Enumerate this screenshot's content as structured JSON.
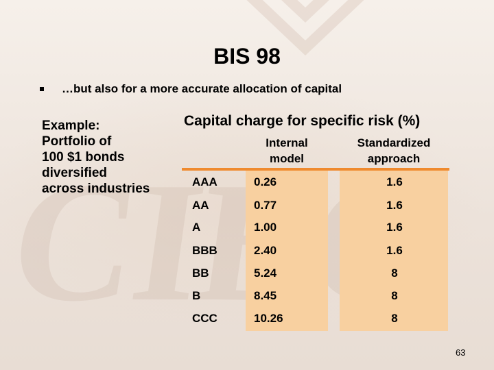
{
  "slide": {
    "title": "BIS 98",
    "bullet": "…but also for a more accurate allocation of capital",
    "example_lines": [
      "Example:",
      "Portfolio of",
      "100 $1 bonds",
      "diversified",
      "across industries"
    ],
    "table_caption": "Capital charge for specific risk (%)",
    "col_internal": [
      "Internal",
      "model"
    ],
    "col_standardized": [
      "Standardized",
      "approach"
    ],
    "rows": [
      {
        "rating": "AAA",
        "internal": "0.26",
        "standardized": "1.6"
      },
      {
        "rating": "AA",
        "internal": "0.77",
        "standardized": "1.6"
      },
      {
        "rating": "A",
        "internal": "1.00",
        "standardized": "1.6"
      },
      {
        "rating": "BBB",
        "internal": "2.40",
        "standardized": "1.6"
      },
      {
        "rating": "BB",
        "internal": "5.24",
        "standardized": "8"
      },
      {
        "rating": "B",
        "internal": "8.45",
        "standardized": "8"
      },
      {
        "rating": "CCC",
        "internal": "10.26",
        "standardized": "8"
      }
    ],
    "page_number": "63",
    "watermark_text": "CIBC"
  },
  "colors": {
    "accent": "#ef8a2e",
    "column_fill": "#f8d0a0"
  }
}
